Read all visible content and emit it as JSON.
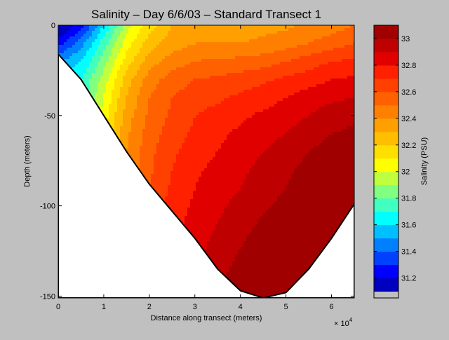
{
  "chart_data": {
    "type": "contour",
    "title": "Salinity – Day 6/6/03 – Standard Transect 1",
    "xlabel": "Distance along transect (meters)",
    "ylabel": "Depth (meters)",
    "x_exponent_label": "× 10",
    "x_exponent_power": "4",
    "xlim": [
      0,
      65000
    ],
    "ylim": [
      -151,
      0
    ],
    "x_ticks": [
      0,
      10000,
      20000,
      30000,
      40000,
      50000,
      60000
    ],
    "x_tick_labels": [
      "0",
      "1",
      "2",
      "3",
      "4",
      "5",
      "6"
    ],
    "y_ticks": [
      0,
      -50,
      -100,
      -150
    ],
    "y_tick_labels": [
      "0",
      "-50",
      "-100",
      "-150"
    ],
    "bottom_profile": [
      [
        0,
        -16
      ],
      [
        5000,
        -30
      ],
      [
        10000,
        -50
      ],
      [
        15000,
        -70
      ],
      [
        20000,
        -88
      ],
      [
        25000,
        -103
      ],
      [
        30000,
        -118
      ],
      [
        35000,
        -135
      ],
      [
        40000,
        -147
      ],
      [
        45000,
        -151
      ],
      [
        50000,
        -148
      ],
      [
        55000,
        -135
      ],
      [
        60000,
        -118
      ],
      [
        65000,
        -99
      ]
    ],
    "salinity_grid": {
      "x": [
        0,
        5000,
        10000,
        15000,
        20000,
        25000,
        30000,
        35000,
        40000,
        45000,
        50000,
        55000,
        60000,
        65000
      ],
      "depth": [
        0,
        -10,
        -20,
        -30,
        -40,
        -50,
        -60,
        -70,
        -80,
        -90,
        -100,
        -110,
        -120,
        -130,
        -140,
        -150
      ],
      "values": [
        [
          31.05,
          31.25,
          31.6,
          31.95,
          32.15,
          32.3,
          32.35,
          32.35,
          32.35,
          32.37,
          32.38,
          32.42,
          32.45,
          32.5
        ],
        [
          31.25,
          31.45,
          31.75,
          32.05,
          32.25,
          32.35,
          32.4,
          32.4,
          32.4,
          32.42,
          32.45,
          32.5,
          32.55,
          32.6
        ],
        [
          31.5,
          31.6,
          31.85,
          32.15,
          32.35,
          32.45,
          32.5,
          32.52,
          32.53,
          32.55,
          32.6,
          32.65,
          32.7,
          32.72
        ],
        [
          31.6,
          31.7,
          31.95,
          32.25,
          32.45,
          32.55,
          32.6,
          32.62,
          32.65,
          32.68,
          32.72,
          32.75,
          32.8,
          32.82
        ],
        [
          31.7,
          31.75,
          32.0,
          32.3,
          32.5,
          32.6,
          32.65,
          32.68,
          32.72,
          32.75,
          32.8,
          32.85,
          32.88,
          32.9
        ],
        [
          31.8,
          31.8,
          32.05,
          32.35,
          32.52,
          32.62,
          32.7,
          32.74,
          32.78,
          32.82,
          32.86,
          32.9,
          32.95,
          32.98
        ],
        [
          31.9,
          31.9,
          32.1,
          32.38,
          32.55,
          32.65,
          32.72,
          32.78,
          32.82,
          32.86,
          32.9,
          32.95,
          33.0,
          33.02
        ],
        [
          32.0,
          32.0,
          32.15,
          32.4,
          32.57,
          32.68,
          32.75,
          32.8,
          32.85,
          32.9,
          32.95,
          33.0,
          33.05,
          33.08
        ],
        [
          32.1,
          32.1,
          32.2,
          32.42,
          32.58,
          32.7,
          32.78,
          32.83,
          32.88,
          32.93,
          32.98,
          33.03,
          33.08,
          33.1
        ],
        [
          32.2,
          32.2,
          32.25,
          32.45,
          32.6,
          32.72,
          32.8,
          32.85,
          32.9,
          32.95,
          33.0,
          33.05,
          33.1,
          33.12
        ],
        [
          32.25,
          32.25,
          32.3,
          32.48,
          32.62,
          32.74,
          32.82,
          32.88,
          32.93,
          32.98,
          33.03,
          33.08,
          33.12,
          33.14
        ],
        [
          32.3,
          32.3,
          32.35,
          32.5,
          32.64,
          32.76,
          32.84,
          32.9,
          32.96,
          33.02,
          33.07,
          33.11,
          33.14,
          33.16
        ],
        [
          32.35,
          32.35,
          32.4,
          32.52,
          32.66,
          32.78,
          32.86,
          32.93,
          32.99,
          33.05,
          33.1,
          33.14,
          33.16,
          33.18
        ],
        [
          32.4,
          32.4,
          32.45,
          32.55,
          32.68,
          32.8,
          32.88,
          32.95,
          33.02,
          33.08,
          33.13,
          33.16,
          33.18,
          33.2
        ],
        [
          32.45,
          32.45,
          32.5,
          32.58,
          32.7,
          32.82,
          32.9,
          32.97,
          33.05,
          33.11,
          33.15,
          33.18,
          33.2,
          33.22
        ],
        [
          32.5,
          32.5,
          32.55,
          32.6,
          32.72,
          32.84,
          32.92,
          33.0,
          33.08,
          33.13,
          33.17,
          33.2,
          33.22,
          33.24
        ]
      ]
    },
    "levels": [
      31.1,
      31.2,
      31.3,
      31.4,
      31.5,
      31.6,
      31.7,
      31.8,
      31.9,
      32.0,
      32.1,
      32.2,
      32.3,
      32.4,
      32.5,
      32.6,
      32.7,
      32.8,
      32.9,
      33.0,
      33.1
    ],
    "colorbar": {
      "label": "Salinity (PSU)",
      "range": [
        31.05,
        33.1
      ],
      "ticks": [
        31.2,
        31.4,
        31.6,
        31.8,
        32.0,
        32.2,
        32.4,
        32.6,
        32.8,
        33.0
      ],
      "tick_labels": [
        "31.2",
        "31.4",
        "31.6",
        "31.8",
        "32",
        "32.2",
        "32.4",
        "32.6",
        "32.8",
        "33"
      ],
      "colors": [
        "#0000bf",
        "#0000ff",
        "#0040ff",
        "#0080ff",
        "#00bfff",
        "#00ffff",
        "#40ffbf",
        "#80ff80",
        "#bfff40",
        "#ffff00",
        "#ffdf00",
        "#ffbf00",
        "#ff9f00",
        "#ff8000",
        "#ff6000",
        "#ff4000",
        "#ff2000",
        "#e00000",
        "#bf0000",
        "#a00000"
      ]
    }
  }
}
